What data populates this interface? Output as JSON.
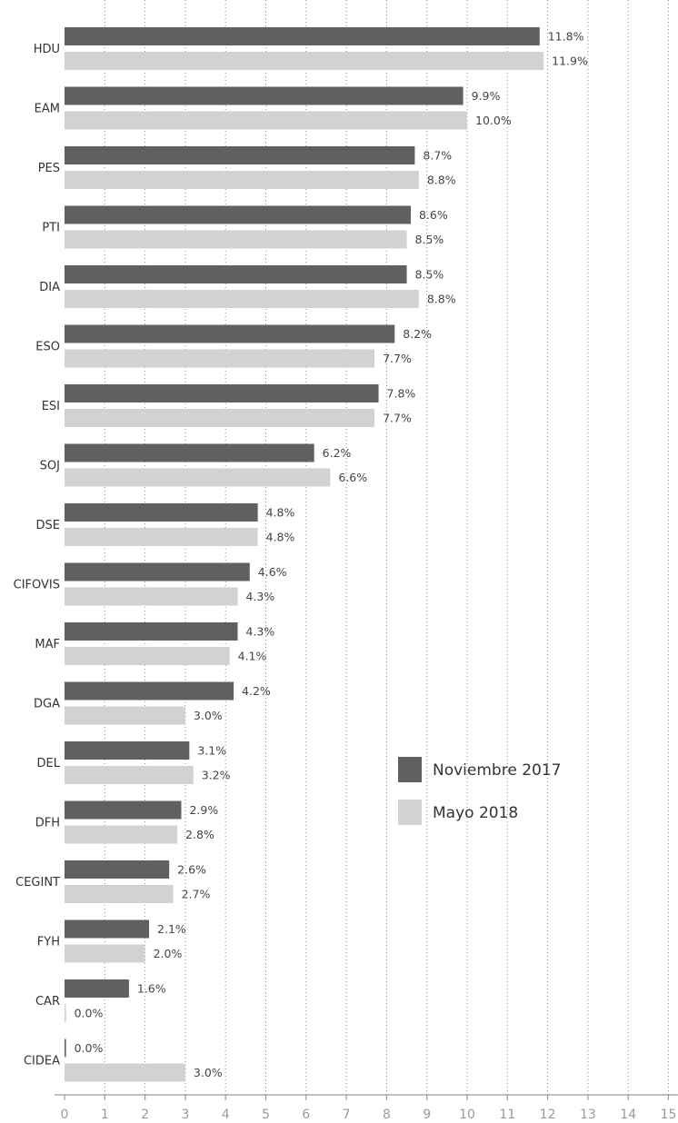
{
  "chart_data": {
    "type": "bar",
    "orientation": "horizontal",
    "categories": [
      "HDU",
      "EAM",
      "PES",
      "PTI",
      "DIA",
      "ESO",
      "ESI",
      "SOJ",
      "DSE",
      "CIFOVIS",
      "MAF",
      "DGA",
      "DEL",
      "DFH",
      "CEGINT",
      "FYH",
      "CAR",
      "CIDEA"
    ],
    "series": [
      {
        "name": "Noviembre 2017",
        "color": "#606062",
        "values": [
          11.8,
          9.9,
          8.7,
          8.6,
          8.5,
          8.2,
          7.8,
          6.2,
          4.8,
          4.6,
          4.3,
          4.2,
          3.1,
          2.9,
          2.6,
          2.1,
          1.6,
          0.0
        ],
        "labels": [
          "11.8%",
          "9.9%",
          "8.7%",
          "8.6%",
          "8.5%",
          "8.2%",
          "7.8%",
          "6.2%",
          "4.8%",
          "4.6%",
          "4.3%",
          "4.2%",
          "3.1%",
          "2.9%",
          "2.6%",
          "2.1%",
          "1.6%",
          "0.0%"
        ]
      },
      {
        "name": "Mayo 2018",
        "color": "#d1d2d4",
        "values": [
          11.9,
          10.0,
          8.8,
          8.5,
          8.8,
          7.7,
          7.7,
          6.6,
          4.8,
          4.3,
          4.1,
          3.0,
          3.2,
          2.8,
          2.7,
          2.0,
          0.0,
          3.0
        ],
        "labels": [
          "11.9%",
          "10.0%",
          "8.8%",
          "8.5%",
          "8.8%",
          "7.7%",
          "7.7%",
          "6.6%",
          "4.8%",
          "4.3%",
          "4.1%",
          "3.0%",
          "3.2%",
          "2.8%",
          "2.7%",
          "2.0%",
          "0.0%",
          "3.0%"
        ]
      }
    ],
    "x_ticks": [
      "0",
      "1",
      "2",
      "3",
      "4",
      "5",
      "6",
      "7",
      "8",
      "9",
      "10",
      "11",
      "12",
      "13",
      "14",
      "15"
    ],
    "xlim": [
      0,
      15
    ],
    "grid": true,
    "legend_position": "right-middle",
    "title": "",
    "xlabel": "",
    "ylabel": ""
  }
}
